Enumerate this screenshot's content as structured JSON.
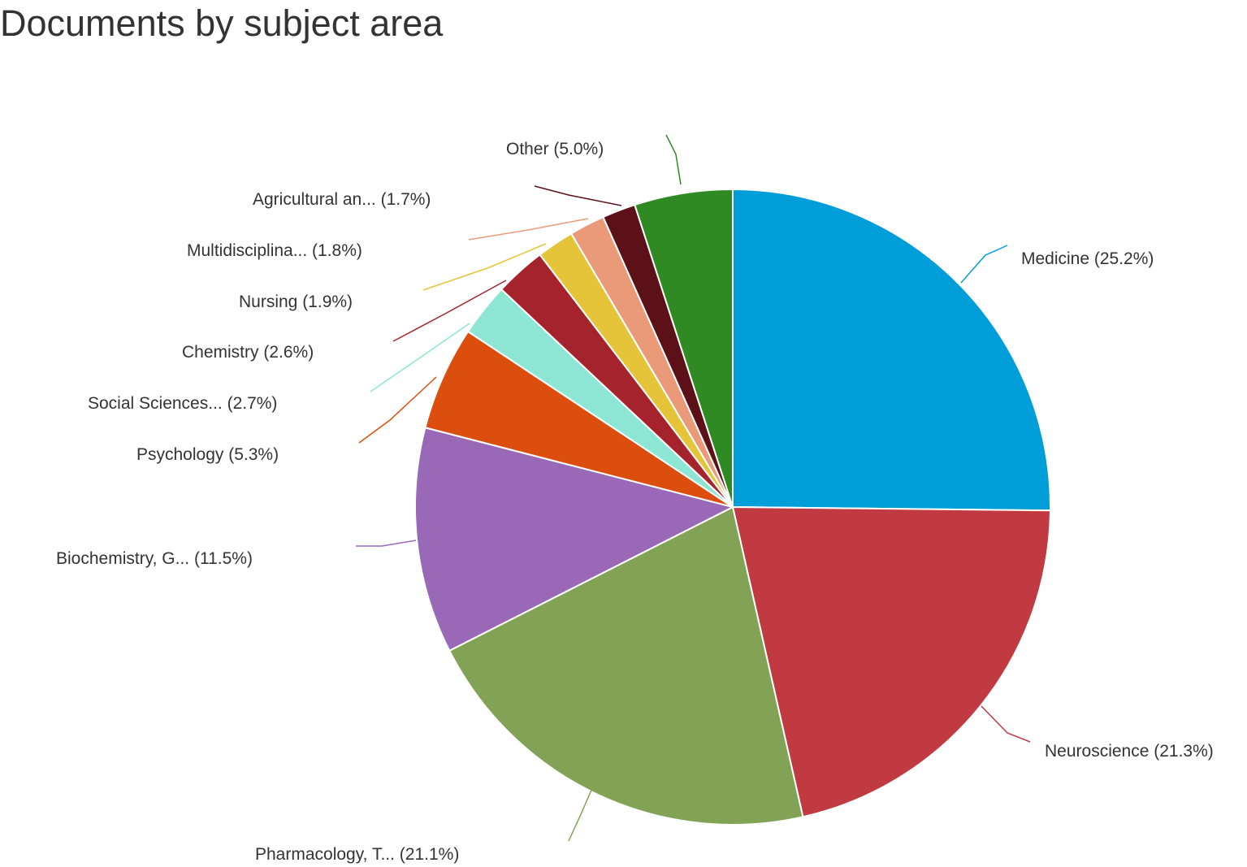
{
  "chart_data": {
    "type": "pie",
    "title": "Documents by subject area",
    "start_angle_deg": 0,
    "direction": "clockwise",
    "slices": [
      {
        "name": "Medicine",
        "label": "Medicine (25.2%)",
        "value": 25.2,
        "color": "#009ed8"
      },
      {
        "name": "Neuroscience",
        "label": "Neuroscience (21.3%)",
        "value": 21.3,
        "color": "#c13a42"
      },
      {
        "name": "Pharmacology, T...",
        "label": "Pharmacology, T... (21.1%)",
        "value": 21.1,
        "color": "#82a355"
      },
      {
        "name": "Biochemistry, G...",
        "label": "Biochemistry, G... (11.5%)",
        "value": 11.5,
        "color": "#9968b6"
      },
      {
        "name": "Psychology",
        "label": "Psychology (5.3%)",
        "value": 5.3,
        "color": "#db4e0e"
      },
      {
        "name": "Social Sciences...",
        "label": "Social Sciences... (2.7%)",
        "value": 2.7,
        "color": "#8de6d4"
      },
      {
        "name": "Chemistry",
        "label": "Chemistry (2.6%)",
        "value": 2.6,
        "color": "#a4232d"
      },
      {
        "name": "Nursing",
        "label": "Nursing (1.9%)",
        "value": 1.9,
        "color": "#e6c43a"
      },
      {
        "name": "Multidisciplina...",
        "label": "Multidisciplina... (1.8%)",
        "value": 1.8,
        "color": "#ea9a79"
      },
      {
        "name": "Agricultural an...",
        "label": "Agricultural an... (1.7%)",
        "value": 1.7,
        "color": "#5c1119"
      },
      {
        "name": "Other",
        "label": "Other (5.0%)",
        "value": 5.0,
        "color": "#2f8a24"
      }
    ]
  }
}
